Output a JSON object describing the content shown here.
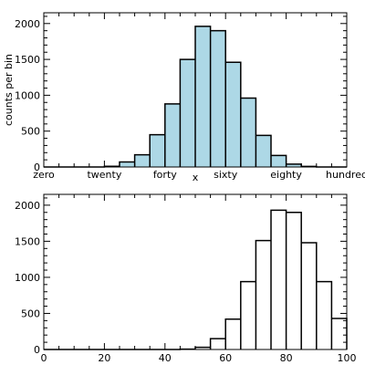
{
  "chart_data": [
    {
      "type": "histogram",
      "xlabel": "x",
      "ylabel": "counts per bin",
      "xlim": [
        0,
        100
      ],
      "ylim": [
        0,
        2150
      ],
      "xticks": [
        0,
        20,
        40,
        60,
        80,
        100
      ],
      "xtick_labels": [
        "zero",
        "twenty",
        "forty",
        "sixty",
        "eighty",
        "hundred"
      ],
      "yticks": [
        0,
        500,
        1000,
        1500,
        2000
      ],
      "ytick_labels": [
        "0",
        "500",
        "1000",
        "1500",
        "2000"
      ],
      "fill_color": "#add8e6",
      "line_color": "#000000",
      "bins": [
        {
          "x0": 20,
          "x1": 25,
          "value": 10
        },
        {
          "x0": 25,
          "x1": 30,
          "value": 70
        },
        {
          "x0": 30,
          "x1": 35,
          "value": 170
        },
        {
          "x0": 35,
          "x1": 40,
          "value": 450
        },
        {
          "x0": 40,
          "x1": 45,
          "value": 880
        },
        {
          "x0": 45,
          "x1": 50,
          "value": 1500
        },
        {
          "x0": 50,
          "x1": 55,
          "value": 1960
        },
        {
          "x0": 55,
          "x1": 60,
          "value": 1900
        },
        {
          "x0": 60,
          "x1": 65,
          "value": 1460
        },
        {
          "x0": 65,
          "x1": 70,
          "value": 960
        },
        {
          "x0": 70,
          "x1": 75,
          "value": 440
        },
        {
          "x0": 75,
          "x1": 80,
          "value": 160
        },
        {
          "x0": 80,
          "x1": 85,
          "value": 40
        },
        {
          "x0": 85,
          "x1": 90,
          "value": 8
        }
      ]
    },
    {
      "type": "histogram",
      "xlabel": "",
      "ylabel": "",
      "xlim": [
        0,
        100
      ],
      "ylim": [
        0,
        2150
      ],
      "xticks": [
        0,
        20,
        40,
        60,
        80,
        100
      ],
      "xtick_labels": [
        "0",
        "20",
        "40",
        "60",
        "80",
        "100"
      ],
      "yticks": [
        0,
        500,
        1000,
        1500,
        2000
      ],
      "ytick_labels": [
        "0",
        "500",
        "1000",
        "1500",
        "2000"
      ],
      "fill_color": "none",
      "line_color": "#000000",
      "bins": [
        {
          "x0": 45,
          "x1": 50,
          "value": 5
        },
        {
          "x0": 50,
          "x1": 55,
          "value": 30
        },
        {
          "x0": 55,
          "x1": 60,
          "value": 150
        },
        {
          "x0": 60,
          "x1": 65,
          "value": 420
        },
        {
          "x0": 65,
          "x1": 70,
          "value": 940
        },
        {
          "x0": 70,
          "x1": 75,
          "value": 1510
        },
        {
          "x0": 75,
          "x1": 80,
          "value": 1930
        },
        {
          "x0": 80,
          "x1": 85,
          "value": 1900
        },
        {
          "x0": 85,
          "x1": 90,
          "value": 1480
        },
        {
          "x0": 90,
          "x1": 95,
          "value": 940
        },
        {
          "x0": 95,
          "x1": 100,
          "value": 430
        }
      ]
    }
  ]
}
